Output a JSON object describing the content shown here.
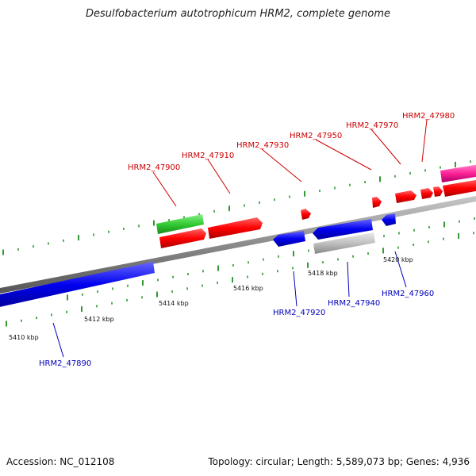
{
  "title": "Desulfobacterium autotrophicum HRM2, complete genome",
  "footer": {
    "accession": "Accession: NC_012108",
    "stats": "Topology: circular; Length: 5,589,073 bp; Genes: 4,936"
  },
  "colors": {
    "forward_gene": "#ff0000",
    "reverse_gene": "#0000ff",
    "green_feature": "#33cc33",
    "gray_feature": "#c0c0c0",
    "magenta_feature": "#ff2299",
    "tick": "#008000",
    "backbone": "#909090"
  },
  "kbp_labels": [
    "5410 kbp",
    "5412 kbp",
    "5414 kbp",
    "5416 kbp",
    "5418 kbp",
    "5420 kbp"
  ],
  "forward_gene_labels": [
    "HRM2_47900",
    "HRM2_47910",
    "HRM2_47930",
    "HRM2_47950",
    "HRM2_47970",
    "HRM2_47980"
  ],
  "reverse_gene_labels": [
    "HRM2_47890",
    "HRM2_47920",
    "HRM2_47940",
    "HRM2_47960"
  ]
}
